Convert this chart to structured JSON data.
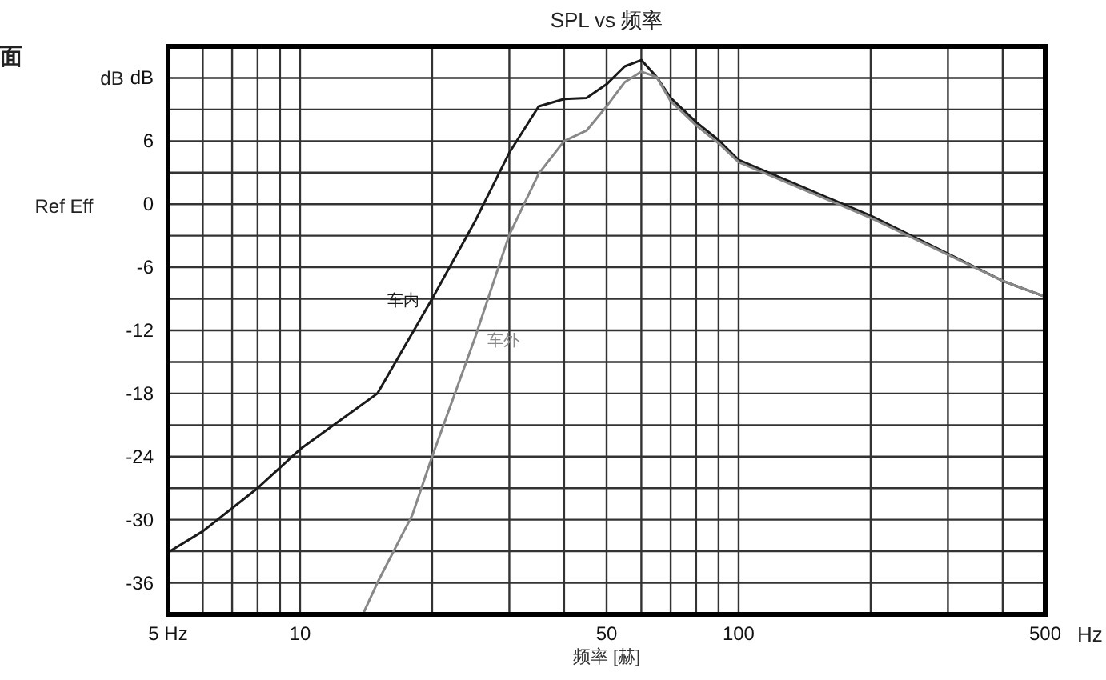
{
  "chart_data": {
    "type": "line",
    "title": "SPL vs 频率",
    "xlabel": "频率 [赫]",
    "log": "x",
    "grid": true,
    "marker": "none",
    "line_style": "solid",
    "annotations": [
      "面",
      "dB",
      "Ref Eff",
      "Hz"
    ],
    "xlim": [
      5,
      500
    ],
    "xticks": [
      {
        "value": 5,
        "label": "5 Hz"
      },
      {
        "value": 6,
        "label": null
      },
      {
        "value": 7,
        "label": null
      },
      {
        "value": 8,
        "label": null
      },
      {
        "value": 9,
        "label": null
      },
      10,
      {
        "value": 20,
        "label": null
      },
      {
        "value": 30,
        "label": null
      },
      {
        "value": 40,
        "label": null
      },
      50,
      {
        "value": 60,
        "label": null
      },
      {
        "value": 70,
        "label": null
      },
      {
        "value": 80,
        "label": null
      },
      {
        "value": 90,
        "label": null
      },
      100,
      {
        "value": 200,
        "label": null
      },
      {
        "value": 300,
        "label": null
      },
      {
        "value": 400,
        "label": null
      },
      500
    ],
    "ylim": [
      -39,
      15
    ],
    "yticks": [
      {
        "value": -36,
        "label": "-36"
      },
      {
        "value": -33,
        "label": null
      },
      {
        "value": -30,
        "label": "-30"
      },
      {
        "value": -27,
        "label": null
      },
      {
        "value": -24,
        "label": "-24"
      },
      {
        "value": -21,
        "label": null
      },
      {
        "value": -18,
        "label": "-18"
      },
      {
        "value": -15,
        "label": null
      },
      {
        "value": -12,
        "label": "-12"
      },
      {
        "value": -9,
        "label": null
      },
      {
        "value": -6,
        "label": "-6"
      },
      {
        "value": -3,
        "label": null
      },
      0,
      {
        "value": 3,
        "label": null
      },
      6,
      {
        "value": 9,
        "label": null
      },
      {
        "value": 12,
        "label": "dB"
      }
    ],
    "series": [
      {
        "name": "车内",
        "color": "#1a1a1a",
        "x": [
          5,
          6,
          8,
          10,
          15,
          20,
          25,
          30,
          35,
          40,
          45,
          50,
          55,
          60,
          65,
          70,
          80,
          90,
          100,
          150,
          200,
          300,
          400,
          500
        ],
        "values": [
          -33.1,
          -31.1,
          -27,
          -23.3,
          -18,
          -9,
          -1.7,
          4.9,
          9.3,
          10,
          10.1,
          11.4,
          13.1,
          13.7,
          12.1,
          10.1,
          7.8,
          6.1,
          4.2,
          1.1,
          -1.1,
          -4.7,
          -7.3,
          -8.8
        ]
      },
      {
        "name": "车外",
        "color": "#888888",
        "x": [
          13.9,
          15,
          18,
          20,
          25,
          30,
          35,
          40,
          45,
          50,
          55,
          60,
          65,
          70,
          80,
          90,
          100,
          150,
          200,
          300,
          400,
          500
        ],
        "values": [
          -39,
          -36,
          -29.6,
          -24,
          -12.8,
          -2.9,
          2.9,
          6,
          7,
          9.3,
          11.6,
          12.6,
          12.1,
          9.8,
          7.5,
          5.8,
          4,
          0.9,
          -1.3,
          -4.8,
          -7.3,
          -8.8
        ]
      }
    ]
  }
}
